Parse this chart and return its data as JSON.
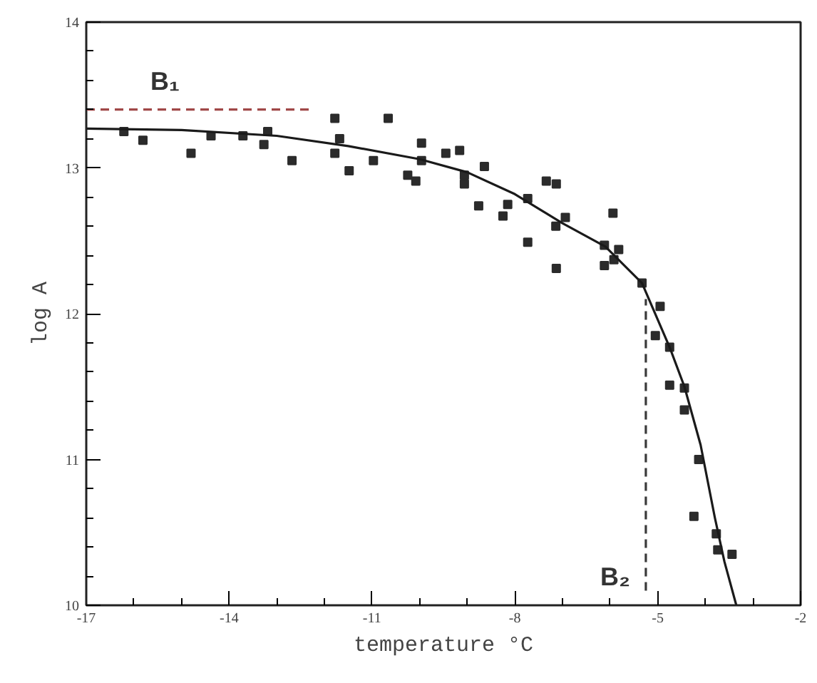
{
  "chart_data": {
    "type": "scatter",
    "xlabel": "temperature °C",
    "ylabel": "log A",
    "xlim": [
      -17,
      -2
    ],
    "ylim": [
      10,
      14
    ],
    "xticks": [
      -17,
      -14,
      -11,
      -8,
      -5,
      -2
    ],
    "yticks": [
      10,
      11,
      12,
      13,
      14
    ],
    "grid": false,
    "series": [
      {
        "marker": "square",
        "color": "#2b2b2b",
        "x": [
          -16.21,
          -15.81,
          -14.8,
          -14.38,
          -13.71,
          -13.27,
          -13.19,
          -12.68,
          -11.78,
          -11.68,
          -11.78,
          -11.48,
          -10.97,
          -10.66,
          -10.25,
          -10.08,
          -9.96,
          -9.96,
          -9.45,
          -9.16,
          -9.06,
          -9.06,
          -8.64,
          -8.76,
          -8.15,
          -8.25,
          -7.73,
          -7.73,
          -7.34,
          -7.13,
          -7.14,
          -6.94,
          -7.13,
          -5.94,
          -6.12,
          -5.82,
          -5.92,
          -6.12,
          -5.33,
          -4.95,
          -5.05,
          -4.75,
          -4.75,
          -4.44,
          -4.44,
          -4.14,
          -4.24,
          -3.77,
          -3.74,
          -3.44
        ],
        "values": [
          13.25,
          13.19,
          13.1,
          13.22,
          13.22,
          13.16,
          13.25,
          13.05,
          13.34,
          13.2,
          13.1,
          12.98,
          13.05,
          13.34,
          12.95,
          12.91,
          13.17,
          13.05,
          13.1,
          13.12,
          12.95,
          12.89,
          13.01,
          12.74,
          12.75,
          12.67,
          12.79,
          12.49,
          12.91,
          12.89,
          12.6,
          12.66,
          12.31,
          12.69,
          12.47,
          12.44,
          12.37,
          12.33,
          12.21,
          12.05,
          11.85,
          11.77,
          11.51,
          11.49,
          11.34,
          11.0,
          10.61,
          10.49,
          10.38,
          10.35
        ]
      },
      {
        "type": "line",
        "color": "#1a1a1a",
        "line_style": "solid",
        "x": [
          -17,
          -15,
          -13,
          -11.5,
          -10,
          -9,
          -8,
          -7,
          -6.1,
          -5.33,
          -4.75,
          -4.44,
          -4.1,
          -3.8,
          -3.6,
          -3.35
        ],
        "values": [
          13.27,
          13.26,
          13.22,
          13.15,
          13.06,
          12.97,
          12.82,
          12.62,
          12.46,
          12.21,
          11.77,
          11.5,
          11.1,
          10.6,
          10.3,
          10.0
        ]
      },
      {
        "type": "line",
        "name": "B₁",
        "color": "#a04848",
        "line_style": "dashed",
        "x": [
          -17,
          -12.25
        ],
        "values": [
          13.4,
          13.4
        ]
      },
      {
        "type": "line",
        "name": "B₂",
        "color": "#3a3a3a",
        "line_style": "dashed",
        "x": [
          -5.25,
          -5.25
        ],
        "values": [
          10.1,
          12.1
        ]
      }
    ]
  }
}
